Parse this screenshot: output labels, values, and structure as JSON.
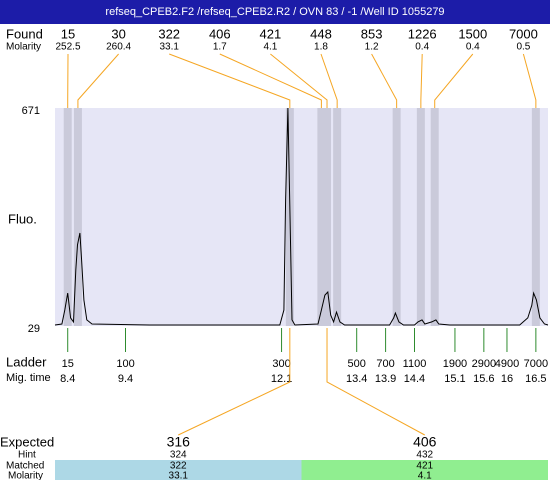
{
  "header": {
    "title": "refseq_CPEB2.F2 /refseq_CPEB2.R2 / OVN 83 / -1 /Well ID 1055279"
  },
  "chart_data": {
    "type": "electropherogram",
    "y_label": "Fluo.",
    "ylim": [
      29,
      671
    ],
    "yticks": [
      29,
      671
    ],
    "xlim": [
      8.18,
      16.71
    ],
    "plot_color": "#e6e6f6",
    "trace": {
      "color": "#000000",
      "x": [
        8.18,
        8.3,
        8.35,
        8.4,
        8.45,
        8.5,
        8.54,
        8.57,
        8.61,
        8.64,
        8.68,
        8.73,
        8.82,
        9.82,
        12.07,
        12.14,
        12.17,
        12.21,
        12.24,
        12.28,
        12.33,
        12.73,
        12.79,
        12.85,
        12.9,
        12.95,
        13.0,
        13.05,
        13.11,
        13.19,
        13.97,
        14.04,
        14.07,
        14.13,
        14.21,
        14.4,
        14.46,
        14.53,
        14.58,
        14.7,
        14.77,
        14.82,
        15.01,
        16.22,
        16.36,
        16.43,
        16.46,
        16.51,
        16.57,
        16.65,
        16.71
      ],
      "values": [
        32,
        35,
        76,
        126,
        53,
        41,
        194,
        268,
        303,
        223,
        106,
        47,
        35,
        32,
        32,
        76,
        400,
        671,
        400,
        47,
        32,
        35,
        76,
        120,
        129,
        61,
        41,
        70,
        41,
        32,
        32,
        53,
        67,
        41,
        32,
        32,
        41,
        47,
        35,
        41,
        47,
        35,
        32,
        32,
        53,
        90,
        126,
        106,
        53,
        35,
        32
      ]
    },
    "found": {
      "label": "Found",
      "molarity_label": "Molarity",
      "line_color": "#f5a623",
      "band_color": "#cacada",
      "sizes": [
        15,
        30,
        322,
        406,
        421,
        448,
        853,
        1226,
        1500,
        7000
      ],
      "molarity": [
        252.5,
        260.4,
        33.1,
        1.7,
        4.1,
        1.8,
        1.2,
        0.4,
        0.4,
        0.5
      ]
    },
    "ladder": {
      "label": "Ladder",
      "time_label": "Mig. time",
      "color": "#2e8b2e",
      "sizes": [
        15,
        100,
        300,
        500,
        700,
        1100,
        1900,
        2900,
        4900,
        7000
      ],
      "times": [
        8.4,
        9.4,
        12.1,
        13.4,
        13.9,
        14.4,
        15.1,
        15.6,
        16,
        16.5
      ]
    }
  },
  "expected": {
    "label": "Expected",
    "hint_label": "Hint",
    "matched_label": "Matched",
    "molarity_label": "Molarity",
    "values": [
      316,
      406
    ],
    "hint": [
      324,
      432
    ],
    "matched": [
      322,
      421
    ],
    "molarity": [
      33.1,
      4.1
    ],
    "colors": [
      "#add8e6",
      "#90ee90"
    ],
    "line_color": "#f5a623"
  }
}
